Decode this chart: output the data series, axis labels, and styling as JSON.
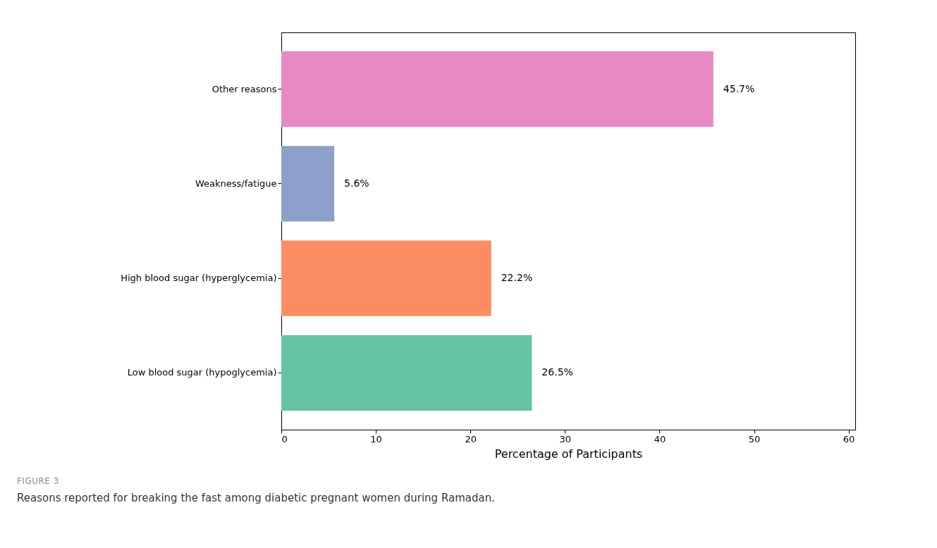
{
  "chart_data": {
    "type": "bar",
    "orientation": "horizontal",
    "xlabel": "Percentage of Participants",
    "categories": [
      "Other reasons",
      "Weakness/fatigue",
      "High blood sugar (hyperglycemia)",
      "Low blood sugar (hypoglycemia)"
    ],
    "values": [
      45.7,
      5.6,
      22.2,
      26.5
    ],
    "colors": [
      "#e78ac3",
      "#8da0cb",
      "#fc8d62",
      "#66c2a5"
    ],
    "value_labels": [
      "45.7%",
      "5.6%",
      "22.2%",
      "26.5%"
    ],
    "xlim": [
      0,
      60.7
    ],
    "xticks": [
      0,
      10,
      20,
      30,
      40,
      50,
      60
    ],
    "grid": false,
    "annotations": [
      "FIGURE 3",
      "Reasons reported for breaking the fast among diabetic pregnant women during Ramadan."
    ]
  }
}
